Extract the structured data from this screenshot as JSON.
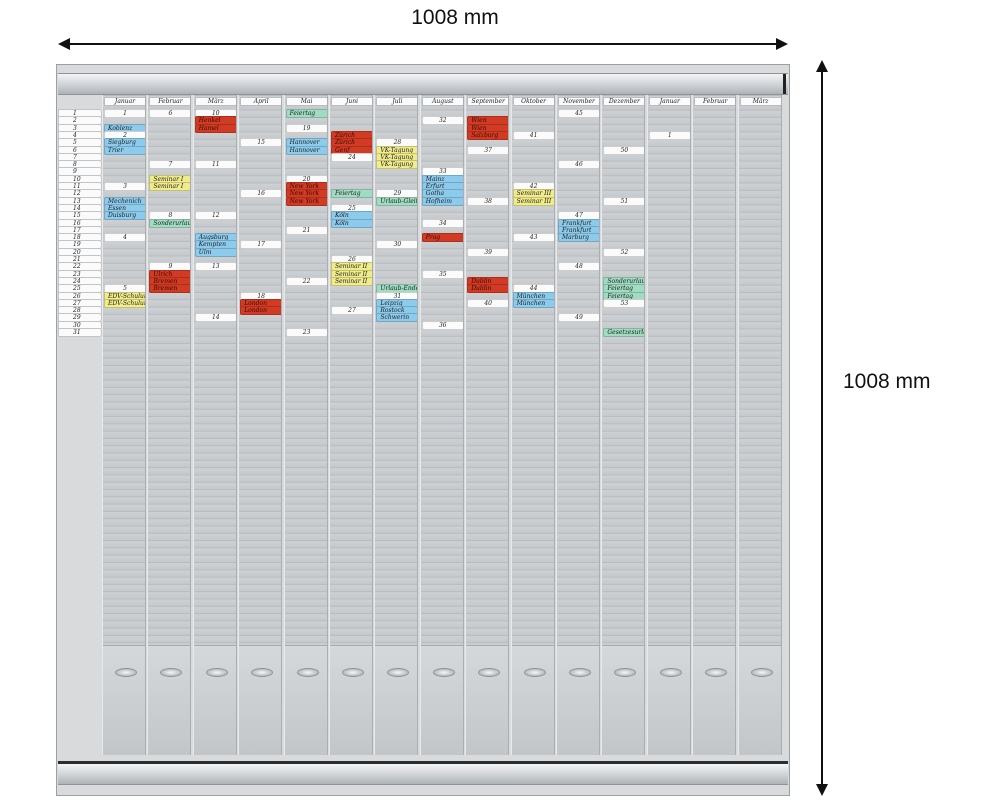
{
  "dimensions": {
    "width_label": "1008 mm",
    "height_label": "1008 mm"
  },
  "board": {
    "row_labels": [
      "1",
      "2",
      "3",
      "4",
      "5",
      "6",
      "7",
      "8",
      "9",
      "10",
      "11",
      "12",
      "13",
      "14",
      "15",
      "16",
      "17",
      "18",
      "19",
      "20",
      "21",
      "22",
      "23",
      "24",
      "25",
      "26",
      "27",
      "28",
      "29",
      "30",
      "31"
    ],
    "columns": [
      {
        "name": "Januar",
        "cards": [
          {
            "row": 1,
            "text": "1",
            "color": "white"
          },
          {
            "row": 3,
            "text": "Koblenz",
            "color": "blue"
          },
          {
            "row": 4,
            "text": "2",
            "color": "white"
          },
          {
            "row": 5,
            "text": "Siegburg",
            "color": "blue"
          },
          {
            "row": 6,
            "text": "Trier",
            "color": "blue"
          },
          {
            "row": 11,
            "text": "3",
            "color": "white"
          },
          {
            "row": 13,
            "text": "Mechenich",
            "color": "blue"
          },
          {
            "row": 14,
            "text": "Essen",
            "color": "blue"
          },
          {
            "row": 15,
            "text": "Duisburg",
            "color": "blue"
          },
          {
            "row": 18,
            "text": "4",
            "color": "white"
          },
          {
            "row": 25,
            "text": "5",
            "color": "white"
          },
          {
            "row": 26,
            "text": "EDV-Schulung",
            "color": "yellow"
          },
          {
            "row": 27,
            "text": "EDV-Schulung",
            "color": "yellow"
          }
        ]
      },
      {
        "name": "Februar",
        "cards": [
          {
            "row": 1,
            "text": "6",
            "color": "white"
          },
          {
            "row": 8,
            "text": "7",
            "color": "white"
          },
          {
            "row": 10,
            "text": "Seminar I",
            "color": "yellow"
          },
          {
            "row": 11,
            "text": "Seminar I",
            "color": "yellow"
          },
          {
            "row": 15,
            "text": "8",
            "color": "white"
          },
          {
            "row": 16,
            "text": "Sonderurlaub",
            "color": "green"
          },
          {
            "row": 22,
            "text": "9",
            "color": "white"
          },
          {
            "row": 23,
            "text": "Ulrich",
            "color": "red"
          },
          {
            "row": 24,
            "text": "Bremen",
            "color": "red"
          },
          {
            "row": 25,
            "text": "Bremen",
            "color": "red"
          }
        ]
      },
      {
        "name": "März",
        "cards": [
          {
            "row": 1,
            "text": "10",
            "color": "white"
          },
          {
            "row": 2,
            "text": "Henkel",
            "color": "red"
          },
          {
            "row": 3,
            "text": "Hamel",
            "color": "red"
          },
          {
            "row": 8,
            "text": "11",
            "color": "white"
          },
          {
            "row": 15,
            "text": "12",
            "color": "white"
          },
          {
            "row": 18,
            "text": "Augsburg",
            "color": "blue"
          },
          {
            "row": 19,
            "text": "Kempten",
            "color": "blue"
          },
          {
            "row": 20,
            "text": "Ulm",
            "color": "blue"
          },
          {
            "row": 22,
            "text": "13",
            "color": "white"
          },
          {
            "row": 29,
            "text": "14",
            "color": "white"
          }
        ]
      },
      {
        "name": "April",
        "cards": [
          {
            "row": 5,
            "text": "15",
            "color": "white"
          },
          {
            "row": 12,
            "text": "16",
            "color": "white"
          },
          {
            "row": 19,
            "text": "17",
            "color": "white"
          },
          {
            "row": 26,
            "text": "18",
            "color": "white"
          },
          {
            "row": 27,
            "text": "London",
            "color": "red"
          },
          {
            "row": 28,
            "text": "London",
            "color": "red"
          }
        ]
      },
      {
        "name": "Mai",
        "cards": [
          {
            "row": 1,
            "text": "Feiertag",
            "color": "green"
          },
          {
            "row": 3,
            "text": "19",
            "color": "white"
          },
          {
            "row": 5,
            "text": "Hannover",
            "color": "blue"
          },
          {
            "row": 6,
            "text": "Hannover",
            "color": "blue"
          },
          {
            "row": 10,
            "text": "20",
            "color": "white"
          },
          {
            "row": 11,
            "text": "New York",
            "color": "red"
          },
          {
            "row": 12,
            "text": "New York",
            "color": "red"
          },
          {
            "row": 13,
            "text": "New York",
            "color": "red"
          },
          {
            "row": 17,
            "text": "21",
            "color": "white"
          },
          {
            "row": 24,
            "text": "22",
            "color": "white"
          },
          {
            "row": 31,
            "text": "23",
            "color": "white"
          }
        ]
      },
      {
        "name": "Juni",
        "cards": [
          {
            "row": 4,
            "text": "Zürich",
            "color": "red"
          },
          {
            "row": 5,
            "text": "Zürich",
            "color": "red"
          },
          {
            "row": 6,
            "text": "Genf",
            "color": "red"
          },
          {
            "row": 7,
            "text": "24",
            "color": "white"
          },
          {
            "row": 12,
            "text": "Feiertag",
            "color": "green"
          },
          {
            "row": 14,
            "text": "25",
            "color": "white"
          },
          {
            "row": 15,
            "text": "Köln",
            "color": "blue"
          },
          {
            "row": 16,
            "text": "Köln",
            "color": "blue"
          },
          {
            "row": 21,
            "text": "26",
            "color": "white"
          },
          {
            "row": 22,
            "text": "Seminar II",
            "color": "yellow"
          },
          {
            "row": 23,
            "text": "Seminar II",
            "color": "yellow"
          },
          {
            "row": 24,
            "text": "Seminar II",
            "color": "yellow"
          },
          {
            "row": 28,
            "text": "27",
            "color": "white"
          }
        ]
      },
      {
        "name": "Juli",
        "cards": [
          {
            "row": 5,
            "text": "28",
            "color": "white"
          },
          {
            "row": 6,
            "text": "VK-Tagung",
            "color": "yellow"
          },
          {
            "row": 7,
            "text": "VK-Tagung",
            "color": "yellow"
          },
          {
            "row": 8,
            "text": "VK-Tagung",
            "color": "yellow"
          },
          {
            "row": 12,
            "text": "29",
            "color": "white"
          },
          {
            "row": 13,
            "text": "Urlaub-Gleit",
            "color": "green"
          },
          {
            "row": 19,
            "text": "30",
            "color": "white"
          },
          {
            "row": 25,
            "text": "Urlaub-Ende",
            "color": "green"
          },
          {
            "row": 26,
            "text": "31",
            "color": "white"
          },
          {
            "row": 27,
            "text": "Leipzig",
            "color": "blue"
          },
          {
            "row": 28,
            "text": "Rostock",
            "color": "blue"
          },
          {
            "row": 29,
            "text": "Schwerin",
            "color": "blue"
          }
        ]
      },
      {
        "name": "August",
        "cards": [
          {
            "row": 2,
            "text": "32",
            "color": "white"
          },
          {
            "row": 9,
            "text": "33",
            "color": "white"
          },
          {
            "row": 10,
            "text": "Mainz",
            "color": "blue"
          },
          {
            "row": 11,
            "text": "Erfurt",
            "color": "blue"
          },
          {
            "row": 12,
            "text": "Gotha",
            "color": "blue"
          },
          {
            "row": 13,
            "text": "Hofheim",
            "color": "blue"
          },
          {
            "row": 16,
            "text": "34",
            "color": "white"
          },
          {
            "row": 18,
            "text": "Prag",
            "color": "red"
          },
          {
            "row": 23,
            "text": "35",
            "color": "white"
          },
          {
            "row": 30,
            "text": "36",
            "color": "white"
          }
        ]
      },
      {
        "name": "September",
        "cards": [
          {
            "row": 2,
            "text": "Wien",
            "color": "red"
          },
          {
            "row": 3,
            "text": "Wien",
            "color": "red"
          },
          {
            "row": 4,
            "text": "Salzburg",
            "color": "red"
          },
          {
            "row": 6,
            "text": "37",
            "color": "white"
          },
          {
            "row": 13,
            "text": "38",
            "color": "white"
          },
          {
            "row": 20,
            "text": "39",
            "color": "white"
          },
          {
            "row": 24,
            "text": "Dublin",
            "color": "red"
          },
          {
            "row": 25,
            "text": "Dublin",
            "color": "red"
          },
          {
            "row": 27,
            "text": "40",
            "color": "white"
          }
        ]
      },
      {
        "name": "Oktober",
        "cards": [
          {
            "row": 4,
            "text": "41",
            "color": "white"
          },
          {
            "row": 11,
            "text": "42",
            "color": "white"
          },
          {
            "row": 12,
            "text": "Seminar III",
            "color": "yellow"
          },
          {
            "row": 13,
            "text": "Seminar III",
            "color": "yellow"
          },
          {
            "row": 18,
            "text": "43",
            "color": "white"
          },
          {
            "row": 25,
            "text": "44",
            "color": "white"
          },
          {
            "row": 26,
            "text": "München",
            "color": "blue"
          },
          {
            "row": 27,
            "text": "München",
            "color": "blue"
          }
        ]
      },
      {
        "name": "November",
        "cards": [
          {
            "row": 1,
            "text": "45",
            "color": "white"
          },
          {
            "row": 8,
            "text": "46",
            "color": "white"
          },
          {
            "row": 15,
            "text": "47",
            "color": "white"
          },
          {
            "row": 16,
            "text": "Frankfurt",
            "color": "blue"
          },
          {
            "row": 17,
            "text": "Frankfurt",
            "color": "blue"
          },
          {
            "row": 18,
            "text": "Marburg",
            "color": "blue"
          },
          {
            "row": 22,
            "text": "48",
            "color": "white"
          },
          {
            "row": 29,
            "text": "49",
            "color": "white"
          }
        ]
      },
      {
        "name": "Dezember",
        "cards": [
          {
            "row": 6,
            "text": "50",
            "color": "white"
          },
          {
            "row": 13,
            "text": "51",
            "color": "white"
          },
          {
            "row": 20,
            "text": "52",
            "color": "white"
          },
          {
            "row": 24,
            "text": "Sonderurlaub",
            "color": "green"
          },
          {
            "row": 25,
            "text": "Feiertag",
            "color": "green"
          },
          {
            "row": 26,
            "text": "Feiertag",
            "color": "green"
          },
          {
            "row": 27,
            "text": "53",
            "color": "white"
          },
          {
            "row": 31,
            "text": "Gesetzesurlaub",
            "color": "green"
          }
        ]
      },
      {
        "name": "Januar",
        "cards": [
          {
            "row": 4,
            "text": "1",
            "color": "white"
          }
        ]
      },
      {
        "name": "Februar",
        "cards": []
      },
      {
        "name": "März",
        "cards": []
      }
    ]
  },
  "colors": {
    "white": "#fbfbfb",
    "blue": "#8ccbec",
    "red": "#d13a23",
    "green": "#9fdcc2",
    "yellow": "#f1ec8b"
  }
}
